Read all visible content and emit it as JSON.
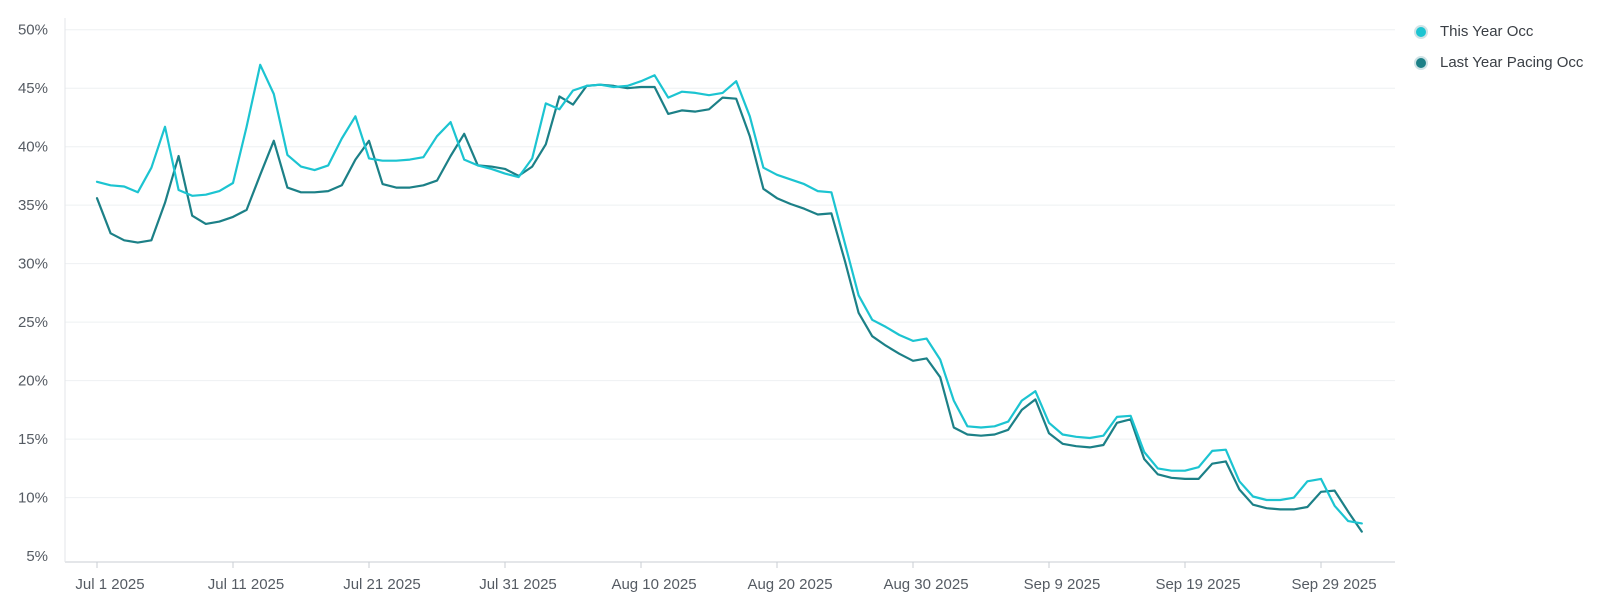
{
  "chart_data": {
    "type": "line",
    "x_start": "2025-07-01",
    "x_ticks": [
      "Jul 1 2025",
      "Jul 11 2025",
      "Jul 21 2025",
      "Jul 31 2025",
      "Aug 10 2025",
      "Aug 20 2025",
      "Aug 30 2025",
      "Sep 9 2025",
      "Sep 19 2025",
      "Sep 29 2025"
    ],
    "y_ticks": [
      "5%",
      "10%",
      "15%",
      "20%",
      "25%",
      "30%",
      "35%",
      "40%",
      "45%",
      "50%"
    ],
    "y_tick_values": [
      5,
      10,
      15,
      20,
      25,
      30,
      35,
      40,
      45,
      50
    ],
    "ylim": [
      4.5,
      51
    ],
    "grid": true,
    "legend_position": "top-right",
    "series": [
      {
        "name": "This Year Occ",
        "color": "#1cc4d1",
        "values": [
          37.0,
          36.7,
          36.6,
          36.1,
          38.2,
          41.7,
          36.3,
          35.8,
          35.9,
          36.2,
          36.9,
          41.7,
          47.0,
          44.5,
          39.3,
          38.3,
          38.0,
          38.4,
          40.7,
          42.6,
          39.0,
          38.8,
          38.8,
          38.9,
          39.1,
          40.9,
          42.1,
          38.9,
          38.4,
          38.1,
          37.7,
          37.4,
          39.0,
          43.7,
          43.2,
          44.8,
          45.2,
          45.3,
          45.1,
          45.2,
          45.6,
          46.1,
          44.2,
          44.7,
          44.6,
          44.4,
          44.6,
          45.6,
          42.6,
          38.2,
          37.6,
          37.2,
          36.8,
          36.2,
          36.1,
          31.7,
          27.3,
          25.2,
          24.6,
          23.9,
          23.4,
          23.6,
          21.8,
          18.3,
          16.1,
          16.0,
          16.1,
          16.5,
          18.3,
          19.1,
          16.4,
          15.4,
          15.2,
          15.1,
          15.3,
          16.9,
          17.0,
          13.9,
          12.5,
          12.3,
          12.3,
          12.6,
          14.0,
          14.1,
          11.4,
          10.1,
          9.8,
          9.8,
          10.0,
          11.4,
          11.6,
          9.3,
          8.0,
          7.8
        ]
      },
      {
        "name": "Last Year Pacing Occ",
        "color": "#1c8087",
        "values": [
          35.6,
          32.6,
          32.0,
          31.8,
          32.0,
          35.2,
          39.2,
          34.1,
          33.4,
          33.6,
          34.0,
          34.6,
          37.6,
          40.5,
          36.5,
          36.1,
          36.1,
          36.2,
          36.7,
          38.9,
          40.5,
          36.8,
          36.5,
          36.5,
          36.7,
          37.1,
          39.2,
          41.1,
          38.4,
          38.3,
          38.1,
          37.5,
          38.3,
          40.2,
          44.3,
          43.6,
          45.2,
          45.3,
          45.2,
          45.0,
          45.1,
          45.1,
          42.8,
          43.1,
          43.0,
          43.2,
          44.2,
          44.1,
          40.9,
          36.4,
          35.6,
          35.1,
          34.7,
          34.2,
          34.3,
          30.2,
          25.8,
          23.8,
          23.0,
          22.3,
          21.7,
          21.9,
          20.3,
          16.0,
          15.4,
          15.3,
          15.4,
          15.8,
          17.5,
          18.4,
          15.5,
          14.6,
          14.4,
          14.3,
          14.5,
          16.4,
          16.7,
          13.3,
          12.0,
          11.7,
          11.6,
          11.6,
          12.9,
          13.1,
          10.7,
          9.4,
          9.1,
          9.0,
          9.0,
          9.2,
          10.5,
          10.6,
          8.8,
          7.1
        ]
      }
    ]
  }
}
